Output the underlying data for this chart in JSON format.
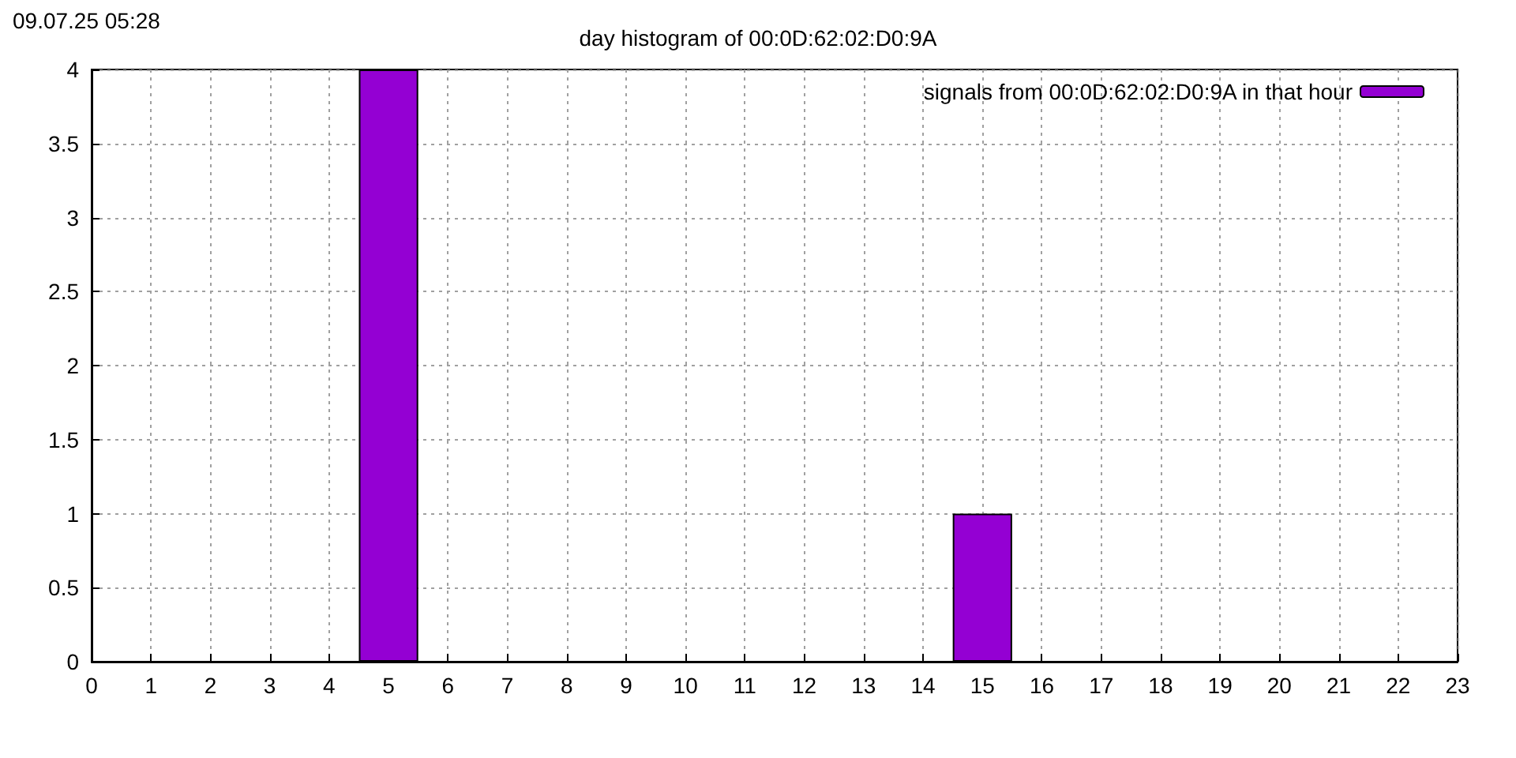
{
  "chart_data": {
    "type": "bar",
    "title": "day histogram of 00:0D:62:02:D0:9A",
    "annotations": [
      "09.07.25 05:28"
    ],
    "x": [
      0,
      1,
      2,
      3,
      4,
      5,
      6,
      7,
      8,
      9,
      10,
      11,
      12,
      13,
      14,
      15,
      16,
      17,
      18,
      19,
      20,
      21,
      22,
      23
    ],
    "series": [
      {
        "name": "signals from 00:0D:62:02:D0:9A in that hour",
        "color": "#9400d3",
        "values": [
          0,
          0,
          0,
          0,
          0,
          4,
          0,
          0,
          0,
          0,
          0,
          0,
          0,
          0,
          0,
          1,
          0,
          0,
          0,
          0,
          0,
          0,
          0,
          0
        ]
      }
    ],
    "xlim": [
      0,
      23
    ],
    "xticks": [
      0,
      1,
      2,
      3,
      4,
      5,
      6,
      7,
      8,
      9,
      10,
      11,
      12,
      13,
      14,
      15,
      16,
      17,
      18,
      19,
      20,
      21,
      22,
      23
    ],
    "ylim": [
      0,
      4
    ],
    "yticks": [
      0,
      0.5,
      1,
      1.5,
      2,
      2.5,
      3,
      3.5,
      4
    ],
    "grid": true,
    "legend": "top right"
  }
}
